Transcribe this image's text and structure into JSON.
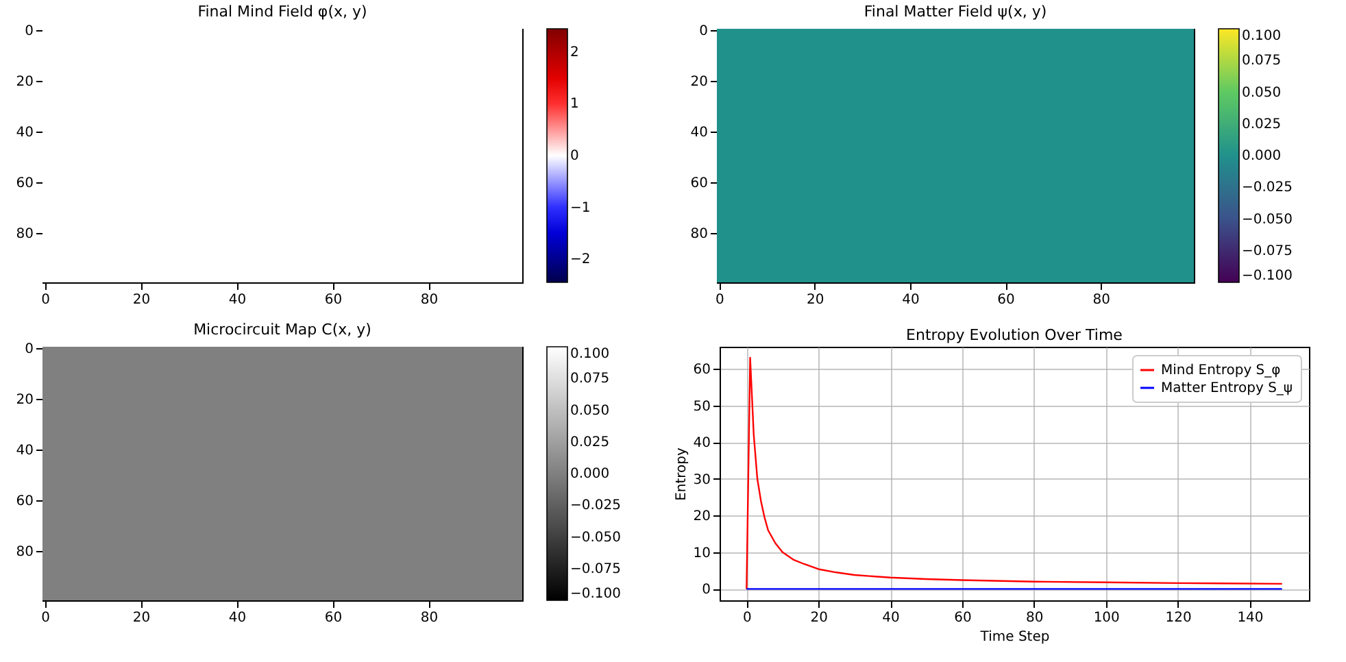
{
  "chart_data": [
    {
      "type": "heatmap",
      "title": "Final Mind Field φ(x, y)",
      "cells": [
        [
          0
        ]
      ],
      "xlim": [
        -0.5,
        99.5
      ],
      "ylim": [
        99.5,
        -0.5
      ],
      "xticks": [
        0,
        20,
        40,
        60,
        80
      ],
      "yticks": [
        0,
        20,
        40,
        60,
        80
      ],
      "clim": [
        -2.45,
        2.45
      ],
      "cticks": [
        {
          "value": -2,
          "label": "−2"
        },
        {
          "value": -1,
          "label": "−1"
        },
        0,
        1,
        2
      ],
      "colors": [
        "#00004c",
        "#0000ff",
        "#ffffff",
        "#ff0000",
        "#800000"
      ]
    },
    {
      "type": "heatmap",
      "title": "Final Matter Field ψ(x, y)",
      "cells": [
        [
          0
        ]
      ],
      "xlim": [
        -0.5,
        99.5
      ],
      "ylim": [
        99.5,
        -0.5
      ],
      "xticks": [
        0,
        20,
        40,
        60,
        80
      ],
      "yticks": [
        0,
        20,
        40,
        60,
        80
      ],
      "clim": [
        -0.1,
        0.1
      ],
      "cticks": [
        {
          "value": -0.1,
          "label": "−0.100"
        },
        {
          "value": -0.075,
          "label": "−0.075"
        },
        {
          "value": -0.05,
          "label": "−0.050"
        },
        {
          "value": -0.025,
          "label": "−0.025"
        },
        {
          "value": 0,
          "label": "0.000"
        },
        {
          "value": 0.025,
          "label": "0.025"
        },
        {
          "value": 0.05,
          "label": "0.050"
        },
        {
          "value": 0.075,
          "label": "0.075"
        },
        {
          "value": 0.1,
          "label": "0.100"
        }
      ],
      "colors": [
        "#440154",
        "#3b528b",
        "#21918c",
        "#5ec962",
        "#fde725"
      ]
    },
    {
      "type": "heatmap",
      "title": "Microcircuit Map C(x, y)",
      "cells": [
        [
          0
        ]
      ],
      "xlim": [
        -0.5,
        99.5
      ],
      "ylim": [
        99.5,
        -0.5
      ],
      "xticks": [
        0,
        20,
        40,
        60,
        80
      ],
      "yticks": [
        0,
        20,
        40,
        60,
        80
      ],
      "clim": [
        -0.1,
        0.1
      ],
      "cticks": [
        {
          "value": -0.1,
          "label": "−0.100"
        },
        {
          "value": -0.075,
          "label": "−0.075"
        },
        {
          "value": -0.05,
          "label": "−0.050"
        },
        {
          "value": -0.025,
          "label": "−0.025"
        },
        {
          "value": 0,
          "label": "0.000"
        },
        {
          "value": 0.025,
          "label": "0.025"
        },
        {
          "value": 0.05,
          "label": "0.050"
        },
        {
          "value": 0.075,
          "label": "0.075"
        },
        {
          "value": 0.1,
          "label": "0.100"
        }
      ],
      "colors": [
        "#000000",
        "#ffffff"
      ]
    },
    {
      "type": "line",
      "title": "Entropy Evolution Over Time",
      "xlabel": "Time Step",
      "ylabel": "Entropy",
      "xlim": [
        -7.5,
        156.5
      ],
      "ylim": [
        -3.1,
        66
      ],
      "xticks": [
        0,
        20,
        40,
        60,
        80,
        100,
        120,
        140
      ],
      "yticks": [
        0,
        10,
        20,
        30,
        40,
        50,
        60
      ],
      "grid": true,
      "legend": "top right",
      "series": [
        {
          "name": "Mind Entropy S_φ",
          "color": "#ff0000",
          "x": [
            0,
            1,
            2,
            3,
            4,
            5,
            6,
            8,
            10,
            13,
            16,
            20,
            25,
            30,
            40,
            50,
            60,
            80,
            100,
            120,
            149
          ],
          "values": [
            0,
            63,
            42,
            30,
            24,
            19.5,
            16,
            12.5,
            10,
            8,
            6.8,
            5.4,
            4.5,
            3.8,
            3.1,
            2.7,
            2.4,
            2.0,
            1.8,
            1.6,
            1.4
          ]
        },
        {
          "name": "Matter Entropy S_ψ",
          "color": "#0000ff",
          "x": [
            0,
            149
          ],
          "values": [
            0,
            0
          ]
        }
      ]
    }
  ]
}
